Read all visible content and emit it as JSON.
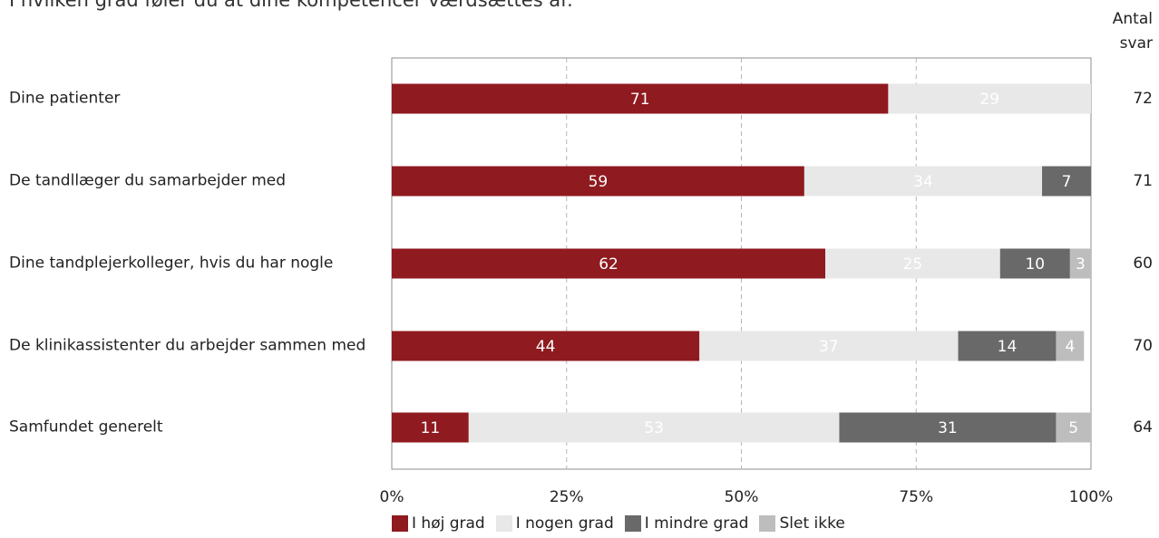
{
  "title": "I hvilken grad føler du at dine kompetencer værdsættes af:",
  "count_header": [
    "Antal",
    "svar"
  ],
  "chart_data": {
    "type": "bar",
    "orientation": "horizontal",
    "stacked": true,
    "categories": [
      "Dine patienter",
      "De tandllæger du samarbejder med",
      "Dine tandplejerkolleger, hvis du har nogle",
      "De klinikassistenter du arbejder sammen med",
      "Samfundet generelt"
    ],
    "series": [
      {
        "name": "I høj grad",
        "color": "#8f1a1f",
        "label_color": "#ffffff",
        "values": [
          71,
          59,
          62,
          44,
          11
        ]
      },
      {
        "name": "I nogen grad",
        "color": "#e8e8e8",
        "label_color": "#ffffff",
        "values": [
          29,
          34,
          25,
          37,
          53
        ]
      },
      {
        "name": "I mindre grad",
        "color": "#696969",
        "label_color": "#ffffff",
        "values": [
          0,
          7,
          10,
          14,
          31
        ]
      },
      {
        "name": "Slet ikke",
        "color": "#bdbdbd",
        "label_color": "#ffffff",
        "values": [
          0,
          0,
          3,
          4,
          5
        ]
      }
    ],
    "counts": [
      72,
      71,
      60,
      70,
      64
    ],
    "x_ticks": [
      "0%",
      "25%",
      "50%",
      "75%",
      "100%"
    ],
    "xlim": [
      0,
      100
    ],
    "grid": "vertical-dashed",
    "legend_position": "bottom"
  }
}
